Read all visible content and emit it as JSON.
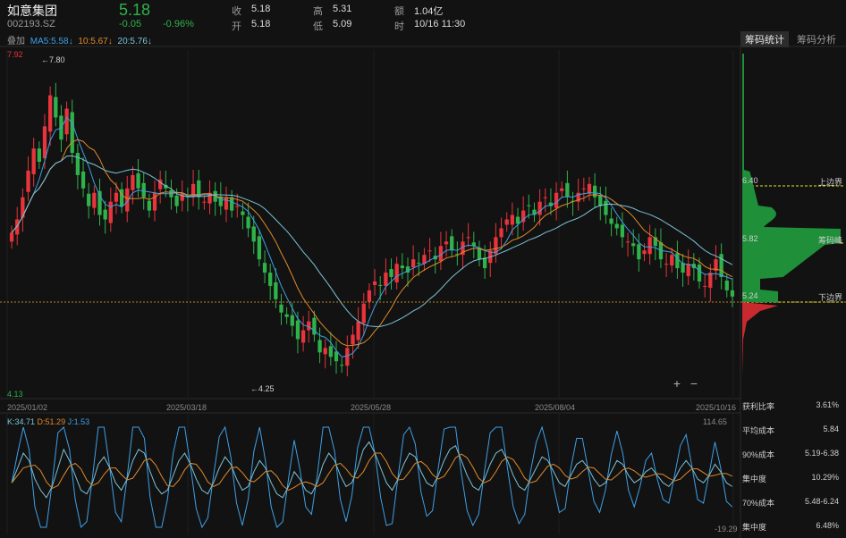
{
  "stock": {
    "name": "如意集团",
    "code": "002193.SZ",
    "price": "5.18",
    "change": "-0.05",
    "change_pct": "-0.96%"
  },
  "quote": [
    {
      "label": "收",
      "value": "5.18"
    },
    {
      "label": "高",
      "value": "5.31"
    },
    {
      "label": "额",
      "value": "1.04亿"
    },
    {
      "label": "开",
      "value": "5.18"
    },
    {
      "label": "低",
      "value": "5.09"
    },
    {
      "label": "时",
      "value": "10/16 11:30"
    }
  ],
  "overlay_label": "叠加",
  "ma": [
    {
      "text": "MA5:5.58↓",
      "color": "#3ea0e6"
    },
    {
      "text": "10:5.67↓",
      "color": "#e08a2a"
    },
    {
      "text": "20:5.76↓",
      "color": "#7bc3d8"
    }
  ],
  "tabs": [
    {
      "label": "筹码统计",
      "active": true
    },
    {
      "label": "筹码分析",
      "active": false
    }
  ],
  "price_axis": {
    "high": "7.92",
    "low": "4.13",
    "max_label": "←7.80",
    "min_label": "←4.25"
  },
  "date_labels": [
    "2025/01/02",
    "2025/03/18",
    "2025/05/28",
    "2025/08/04",
    "2025/10/16"
  ],
  "chip": {
    "upper_price": "6.40",
    "upper_label": "上边界",
    "peak_price": "5.82",
    "peak_label": "筹码峰",
    "lower_price": "5.24",
    "lower_label": "下边界"
  },
  "stats": [
    {
      "label": "获利比率",
      "value": "3.61%"
    },
    {
      "label": "平均成本",
      "value": "5.84"
    },
    {
      "label": "90%成本",
      "value": "5.19-6.38"
    },
    {
      "label": "集中度",
      "value": "10.29%"
    },
    {
      "label": "70%成本",
      "value": "5.48-6.24"
    },
    {
      "label": "集中度",
      "value": "6.48%"
    }
  ],
  "kdj": [
    {
      "text": "K:34.71",
      "color": "#7bc3d8"
    },
    {
      "text": "D:51.29",
      "color": "#e08a2a"
    },
    {
      "text": "J:1.53",
      "color": "#3ea0e6"
    }
  ],
  "kdj_axis": {
    "top": "114.65",
    "bottom": "-19.29"
  },
  "zoom": {
    "in": "+",
    "out": "−"
  },
  "colors": {
    "up": "#e8343c",
    "down": "#2fb24a",
    "bg": "#121212"
  },
  "chart_data": {
    "type": "candlestick",
    "y_range": [
      4.13,
      7.92
    ],
    "closes": [
      5.9,
      6.05,
      6.3,
      6.6,
      6.85,
      6.7,
      7.1,
      7.45,
      7.2,
      6.95,
      7.3,
      6.8,
      6.55,
      6.4,
      6.2,
      6.35,
      6.1,
      6.05,
      6.25,
      6.35,
      6.2,
      6.4,
      6.55,
      6.4,
      6.3,
      6.15,
      6.35,
      6.5,
      6.4,
      6.3,
      6.2,
      6.35,
      6.3,
      6.45,
      6.3,
      6.25,
      6.35,
      6.25,
      6.2,
      6.3,
      6.15,
      6.2,
      6.1,
      5.95,
      5.8,
      5.6,
      5.45,
      5.3,
      5.15,
      5.0,
      4.95,
      4.85,
      4.7,
      4.8,
      4.9,
      4.75,
      4.55,
      4.6,
      4.5,
      4.45,
      4.4,
      4.6,
      4.75,
      4.9,
      5.1,
      5.25,
      5.35,
      5.3,
      5.45,
      5.4,
      5.55,
      5.5,
      5.45,
      5.6,
      5.55,
      5.65,
      5.7,
      5.6,
      5.75,
      5.8,
      5.7,
      5.65,
      5.8,
      5.85,
      5.75,
      5.6,
      5.5,
      5.7,
      5.85,
      5.95,
      6.05,
      6.1,
      6.0,
      6.15,
      6.2,
      6.1,
      6.25,
      6.3,
      6.2,
      6.35,
      6.4,
      6.3,
      6.25,
      6.35,
      6.4,
      6.45,
      6.3,
      6.2,
      6.1,
      6.0,
      5.95,
      5.85,
      5.8,
      5.75,
      5.6,
      5.7,
      5.85,
      5.75,
      5.6,
      5.55,
      5.65,
      5.5,
      5.45,
      5.55,
      5.5,
      5.35,
      5.3,
      5.45,
      5.6,
      5.4,
      5.25,
      5.18
    ]
  },
  "kdj_data": {
    "K": [
      40,
      60,
      80,
      70,
      45,
      30,
      20,
      35,
      60,
      85,
      70,
      50,
      30,
      25,
      40,
      65,
      75,
      60,
      40,
      30,
      45,
      70,
      85,
      80,
      55,
      35,
      25,
      30,
      50,
      70,
      80,
      65,
      45,
      30,
      25,
      40,
      60,
      75,
      65,
      45,
      30,
      35,
      55,
      70,
      60,
      40,
      25,
      20,
      35,
      55,
      45,
      30,
      25,
      40,
      65,
      80,
      70,
      50,
      35,
      40,
      60,
      85,
      95,
      80,
      60,
      40,
      30,
      45,
      65,
      80,
      75,
      55,
      40,
      35,
      50,
      70,
      85,
      90,
      70,
      50,
      35,
      30,
      45,
      65,
      80,
      85,
      70,
      50,
      35,
      30,
      45,
      60,
      75,
      70,
      55,
      40,
      35,
      50,
      65,
      70,
      60,
      45,
      35,
      40,
      55,
      70,
      65,
      50,
      40,
      45,
      55,
      60,
      50,
      40,
      35,
      45,
      60,
      70,
      60,
      45,
      40,
      50,
      65,
      55,
      40,
      35
    ]
  }
}
